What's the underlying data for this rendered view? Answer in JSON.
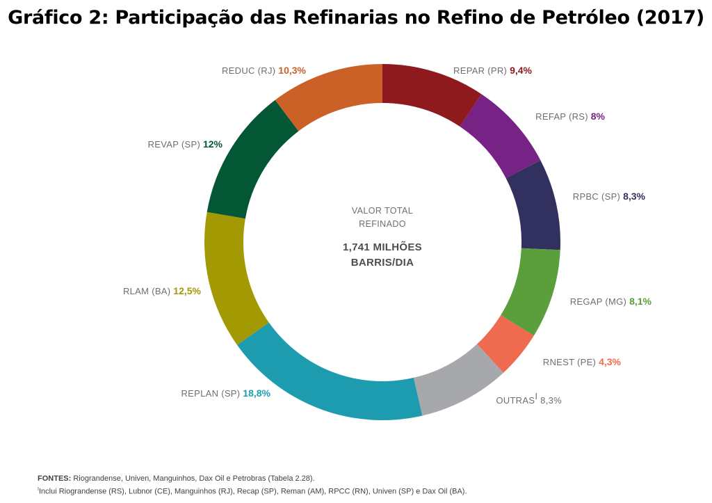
{
  "title": "Gráfico 2: Participação das Refinarias no Refino de Petróleo (2017)",
  "center": {
    "line1": "VALOR TOTAL",
    "line2": "REFINADO",
    "line3": "1,741 MILHÕES",
    "line4": "BARRIS/DIA"
  },
  "chart_data": {
    "type": "pie",
    "style": "donut",
    "title": "Gráfico 2: Participação das Refinarias no Refino de Petróleo (2017)",
    "slices": [
      {
        "label": "REPAR (PR)",
        "value": 9.4,
        "display": "9,4%",
        "color": "#8e1a1e"
      },
      {
        "label": "REFAP (RS)",
        "value": 8,
        "display": "8%",
        "color": "#772385"
      },
      {
        "label": "RPBC (SP)",
        "value": 8.3,
        "display": "8,3%",
        "color": "#31305e"
      },
      {
        "label": "REGAP (MG)",
        "value": 8.1,
        "display": "8,1%",
        "color": "#5a9f3c"
      },
      {
        "label": "RNEST (PE)",
        "value": 4.3,
        "display": "4,3%",
        "color": "#ef6b4f"
      },
      {
        "label": "OUTRAS",
        "sup": "I",
        "value": 8.3,
        "display": "8,3%",
        "color": "#a6a8ab"
      },
      {
        "label": "REPLAN (SP)",
        "value": 18.8,
        "display": "18,8%",
        "color": "#1d9cb0"
      },
      {
        "label": "RLAM (BA)",
        "value": 12.5,
        "display": "12,5%",
        "color": "#a39a03"
      },
      {
        "label": "REVAP (SP)",
        "value": 12,
        "display": "12%",
        "color": "#045735"
      },
      {
        "label": "REDUC (RJ)",
        "value": 10.3,
        "display": "10,3%",
        "color": "#cc6128"
      }
    ]
  },
  "notes": {
    "sources_label": "FONTES:",
    "sources_text": " Riograndense, Univen, Manguinhos, Dax Oil e Petrobras (Tabela 2.28).",
    "footnote_mark": "I",
    "footnote_text": "Inclui Riograndense (RS), Lubnor (CE), Manguinhos (RJ), Recap (SP), Reman (AM), RPCC (RN), Univen (SP) e Dax Oil (BA)."
  }
}
